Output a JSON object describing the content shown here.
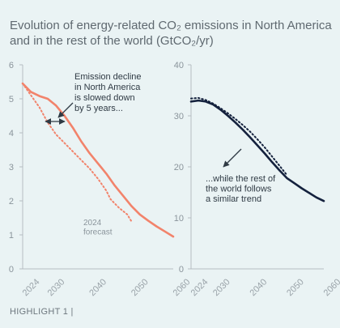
{
  "title_line1": "Evolution of energy-related CO₂ emissions in North America",
  "title_line2": "and in the rest of the world (GtCO₂/yr)",
  "footer": "HIGHLIGHT 1 |",
  "colors": {
    "na": "#f2836b",
    "row": "#14213d",
    "axis": "#b5bdc2",
    "bg": "#eaf3f4"
  },
  "chart_data": [
    {
      "type": "line",
      "xlim": [
        2024,
        2060
      ],
      "ylim": [
        0,
        6
      ],
      "yticks": [
        0,
        1,
        2,
        3,
        4,
        5,
        6
      ],
      "xticks": [
        2024,
        2030,
        2040,
        2050,
        2060
      ],
      "series": [
        {
          "style": "solid",
          "color": "#f2836b",
          "x": [
            2024,
            2026,
            2028,
            2030,
            2032,
            2034,
            2036,
            2038,
            2040,
            2042,
            2044,
            2046,
            2048,
            2050,
            2052,
            2054,
            2056,
            2058,
            2060
          ],
          "y": [
            5.45,
            5.2,
            5.08,
            5.0,
            4.8,
            4.5,
            4.15,
            3.75,
            3.4,
            3.1,
            2.8,
            2.45,
            2.15,
            1.85,
            1.6,
            1.42,
            1.25,
            1.1,
            0.95
          ]
        },
        {
          "style": "dotted",
          "color": "#f2836b",
          "x": [
            2024,
            2026,
            2028,
            2030,
            2032,
            2034,
            2036,
            2038,
            2040,
            2042,
            2044,
            2045,
            2047,
            2049,
            2050
          ],
          "y": [
            5.45,
            5.1,
            4.75,
            4.3,
            3.95,
            3.7,
            3.45,
            3.2,
            2.95,
            2.65,
            2.3,
            2.05,
            1.8,
            1.6,
            1.4
          ]
        }
      ],
      "annotations": [
        {
          "lines": [
            "Emission decline",
            "in North America",
            "is slowed down",
            "by 5 years..."
          ]
        },
        {
          "lines": [
            "2024",
            "forecast"
          ]
        }
      ]
    },
    {
      "type": "line",
      "xlim": [
        2024,
        2060
      ],
      "ylim": [
        0,
        40
      ],
      "yticks": [
        0,
        10,
        20,
        30,
        40
      ],
      "xticks": [
        2024,
        2030,
        2040,
        2050,
        2060
      ],
      "series": [
        {
          "style": "solid",
          "color": "#14213d",
          "x": [
            2024,
            2026,
            2028,
            2030,
            2032,
            2034,
            2036,
            2038,
            2040,
            2042,
            2044,
            2046,
            2048,
            2050,
            2052,
            2054,
            2056,
            2058,
            2060
          ],
          "y": [
            32.8,
            33.0,
            32.8,
            32.2,
            31.2,
            30.0,
            28.7,
            27.3,
            25.8,
            24.2,
            22.6,
            20.9,
            19.3,
            17.8,
            16.8,
            15.8,
            14.9,
            14.0,
            13.3
          ]
        },
        {
          "style": "dotted",
          "color": "#14213d",
          "x": [
            2024,
            2026,
            2028,
            2030,
            2032,
            2034,
            2036,
            2038,
            2040,
            2042,
            2044,
            2046,
            2048,
            2050
          ],
          "y": [
            33.4,
            33.5,
            33.1,
            32.4,
            31.5,
            30.5,
            29.4,
            28.2,
            26.9,
            25.4,
            23.8,
            22.0,
            20.2,
            18.4
          ]
        }
      ],
      "annotations": [
        {
          "lines": [
            "...while the rest of",
            "the world  follows",
            "a similar trend"
          ]
        }
      ]
    }
  ]
}
